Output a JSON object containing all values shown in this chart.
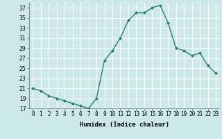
{
  "x": [
    0,
    1,
    2,
    3,
    4,
    5,
    6,
    7,
    8,
    9,
    10,
    11,
    12,
    13,
    14,
    15,
    16,
    17,
    18,
    19,
    20,
    21,
    22,
    23
  ],
  "y": [
    21,
    20.5,
    19.5,
    19,
    18.5,
    18,
    17.5,
    17,
    19,
    26.5,
    28.5,
    31,
    34.5,
    36,
    36,
    37,
    37.5,
    34,
    29,
    28.5,
    27.5,
    28,
    25.5,
    24
  ],
  "line_color": "#2e7d6e",
  "marker": "D",
  "markersize": 2,
  "bg_color": "#cce8e8",
  "grid_color": "#ffffff",
  "xlabel": "Humidex (Indice chaleur)",
  "xlim": [
    -0.5,
    23.5
  ],
  "ylim": [
    17,
    38
  ],
  "yticks": [
    17,
    19,
    21,
    23,
    25,
    27,
    29,
    31,
    33,
    35,
    37
  ],
  "xtick_labels": [
    "0",
    "1",
    "2",
    "3",
    "4",
    "5",
    "6",
    "7",
    "8",
    "9",
    "10",
    "11",
    "12",
    "13",
    "14",
    "15",
    "16",
    "17",
    "18",
    "19",
    "20",
    "21",
    "22",
    "23"
  ],
  "xlabel_fontsize": 6.5,
  "tick_fontsize": 5.5,
  "linewidth": 1.0
}
